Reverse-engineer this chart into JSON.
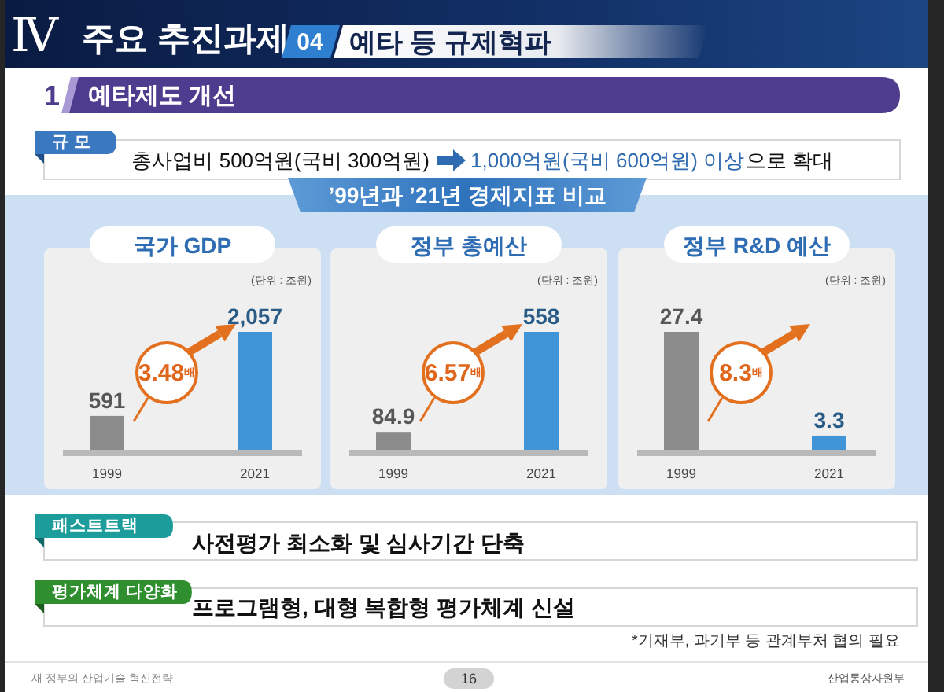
{
  "chart_data": [
    {
      "type": "other",
      "title": "주요 추진과제",
      "subtitle": "예타 등 규제혁파",
      "annotations": [
        "Ⅳ",
        "04",
        "1",
        "예타제도 개선",
        "규 모",
        "총사업비 500억원(국비 300억원)",
        "1,000억원(국비 600억원) 이상",
        "으로 확대",
        "’99년과 ’21년 경제지표 비교"
      ]
    },
    {
      "type": "bar",
      "title": "국가 GDP",
      "subtitle": "(단위 : 조원)",
      "categories": [
        "1999",
        "2021"
      ],
      "values": [
        591,
        2057
      ],
      "value_labels": [
        "591",
        "2,057"
      ],
      "colors": [
        "#8c8c8c",
        "#4094d8"
      ],
      "annotations": [
        "3.48배"
      ]
    },
    {
      "type": "bar",
      "title": "정부 총예산",
      "subtitle": "(단위 : 조원)",
      "categories": [
        "1999",
        "2021"
      ],
      "values": [
        84.9,
        558
      ],
      "data_labels": true,
      "colors": [
        "#8c8c8c",
        "#4094d8"
      ],
      "annotations": [
        "6.57배"
      ]
    },
    {
      "type": "bar",
      "title": "정부 R&D 예산",
      "subtitle": "(단위 : 조원)",
      "categories": [
        "1999",
        "2021"
      ],
      "values": [
        27.4,
        3.3
      ],
      "data_labels": true,
      "colors": [
        "#8c8c8c",
        "#4094d8"
      ],
      "annotations": [
        "8.3배"
      ]
    },
    {
      "type": "other",
      "annotations": [
        "패스트트랙",
        "사전평가 최소화 및 심사기간 단축",
        "평가체계 다양화",
        "프로그램형, 대형 복합형 평가체계 신설",
        "*기재부, 과기부 등 관계부처 협의 필요",
        "새 정부의 산업기술 혁신전략",
        "16",
        "산업통상자원부"
      ]
    }
  ]
}
